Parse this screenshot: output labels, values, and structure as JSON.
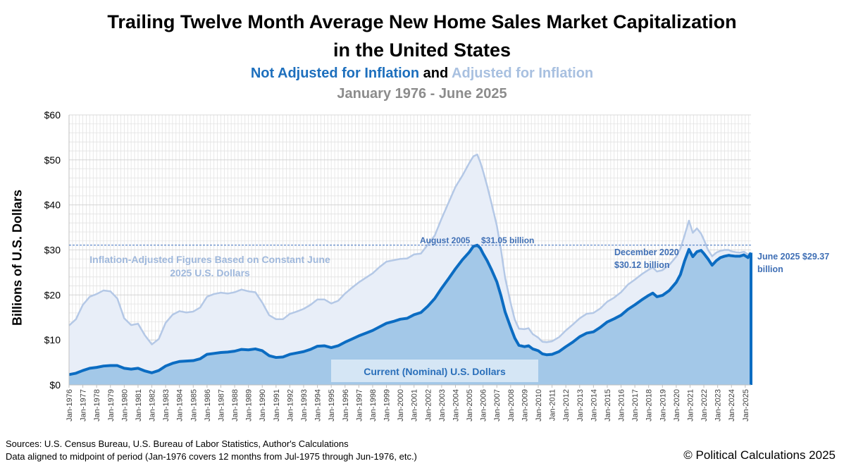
{
  "header": {
    "title_line1": "Trailing Twelve Month Average New Home Sales Market Capitalization",
    "title_line2": "in the United States",
    "subtitle_nominal": "Not Adjusted for Inflation",
    "subtitle_and": "and",
    "subtitle_adjusted": "Adjusted for Inflation",
    "date_range": "January 1976 - June 2025"
  },
  "footer": {
    "source_line1": "Sources: U.S. Census Bureau, U.S. Bureau of Labor Statistics, Author's Calculations",
    "source_line2": "Data aligned to midpoint of period (Jan-1976 covers 12 months from Jul-1975 through Jun-1976, etc.)",
    "copyright": "© Political Calculations 2025"
  },
  "colors": {
    "nominal_line": "#0b6cc2",
    "nominal_fill": "#a3c8e8",
    "adjusted_line": "#b4c8e6",
    "adjusted_fill": "#e8eef8",
    "reference_line": "#3a6fbd"
  },
  "chart_data": {
    "type": "area",
    "ylabel": "Billions of U.S. Dollars",
    "xlabel": "",
    "ylim": [
      0,
      60
    ],
    "yticks": [
      0,
      10,
      20,
      30,
      40,
      50,
      60
    ],
    "ytick_labels": [
      "$0",
      "$10",
      "$20",
      "$30",
      "$40",
      "$50",
      "$60"
    ],
    "xlim": [
      1976.0,
      2025.4167
    ],
    "x_tick_labels": [
      "Jan-1976",
      "Jan-1977",
      "Jan-1978",
      "Jan-1979",
      "Jan-1980",
      "Jan-1981",
      "Jan-1982",
      "Jan-1983",
      "Jan-1984",
      "Jan-1985",
      "Jan-1986",
      "Jan-1987",
      "Jan-1988",
      "Jan-1989",
      "Jan-1990",
      "Jan-1991",
      "Jan-1992",
      "Jan-1993",
      "Jan-1994",
      "Jan-1995",
      "Jan-1996",
      "Jan-1997",
      "Jan-1998",
      "Jan-1999",
      "Jan-2000",
      "Jan-2001",
      "Jan-2002",
      "Jan-2003",
      "Jan-2004",
      "Jan-2005",
      "Jan-2006",
      "Jan-2007",
      "Jan-2008",
      "Jan-2009",
      "Jan-2010",
      "Jan-2011",
      "Jan-2012",
      "Jan-2013",
      "Jan-2014",
      "Jan-2015",
      "Jan-2016",
      "Jan-2017",
      "Jan-2018",
      "Jan-2019",
      "Jan-2020",
      "Jan-2021",
      "Jan-2022",
      "Jan-2023",
      "Jan-2024",
      "Jan-2025"
    ],
    "grid": true,
    "series": [
      {
        "name": "Current (Nominal) U.S. Dollars",
        "x": [
          1976.0,
          1976.5,
          1977.0,
          1977.5,
          1978.0,
          1978.5,
          1979.0,
          1979.5,
          1980.0,
          1980.5,
          1981.0,
          1981.5,
          1982.0,
          1982.5,
          1983.0,
          1983.5,
          1984.0,
          1984.5,
          1985.0,
          1985.5,
          1986.0,
          1986.5,
          1987.0,
          1987.5,
          1988.0,
          1988.5,
          1989.0,
          1989.5,
          1990.0,
          1990.5,
          1991.0,
          1991.5,
          1992.0,
          1992.5,
          1993.0,
          1993.5,
          1994.0,
          1994.5,
          1995.0,
          1995.5,
          1996.0,
          1996.5,
          1997.0,
          1997.5,
          1998.0,
          1998.5,
          1999.0,
          1999.5,
          2000.0,
          2000.5,
          2001.0,
          2001.5,
          2002.0,
          2002.5,
          2003.0,
          2003.5,
          2004.0,
          2004.5,
          2005.0,
          2005.3,
          2005.58,
          2005.8,
          2006.0,
          2006.3,
          2006.6,
          2007.0,
          2007.3,
          2007.6,
          2008.0,
          2008.3,
          2008.6,
          2009.0,
          2009.3,
          2009.6,
          2010.0,
          2010.3,
          2010.6,
          2011.0,
          2011.5,
          2012.0,
          2012.5,
          2013.0,
          2013.5,
          2014.0,
          2014.5,
          2015.0,
          2015.5,
          2016.0,
          2016.5,
          2017.0,
          2017.5,
          2018.0,
          2018.3,
          2018.6,
          2019.0,
          2019.5,
          2020.0,
          2020.3,
          2020.6,
          2020.92,
          2021.2,
          2021.5,
          2021.8,
          2022.0,
          2022.3,
          2022.6,
          2022.9,
          2023.2,
          2023.5,
          2023.8,
          2024.0,
          2024.3,
          2024.6,
          2024.9,
          2025.2,
          2025.4167
        ],
        "values": [
          2.3,
          2.6,
          3.2,
          3.7,
          3.9,
          4.2,
          4.3,
          4.3,
          3.7,
          3.5,
          3.7,
          3.1,
          2.7,
          3.2,
          4.2,
          4.8,
          5.2,
          5.3,
          5.4,
          5.8,
          6.8,
          7.0,
          7.2,
          7.3,
          7.5,
          7.9,
          7.8,
          8.0,
          7.6,
          6.5,
          6.1,
          6.2,
          6.8,
          7.1,
          7.4,
          7.9,
          8.6,
          8.7,
          8.3,
          8.7,
          9.5,
          10.2,
          10.9,
          11.5,
          12.1,
          12.9,
          13.7,
          14.1,
          14.6,
          14.8,
          15.6,
          16.1,
          17.5,
          19.2,
          21.5,
          23.6,
          25.8,
          27.8,
          29.5,
          30.8,
          31.05,
          30.4,
          29.2,
          27.6,
          25.7,
          22.9,
          19.8,
          16.2,
          12.8,
          10.4,
          8.8,
          8.5,
          8.7,
          8.0,
          7.6,
          6.9,
          6.7,
          6.8,
          7.4,
          8.5,
          9.5,
          10.7,
          11.5,
          11.8,
          12.8,
          14.0,
          14.7,
          15.5,
          16.8,
          17.8,
          18.9,
          19.9,
          20.4,
          19.6,
          19.9,
          21.0,
          22.8,
          24.5,
          27.5,
          30.12,
          28.5,
          29.6,
          29.9,
          29.2,
          28.0,
          26.6,
          27.6,
          28.3,
          28.6,
          28.8,
          28.7,
          28.6,
          28.6,
          28.9,
          28.3,
          29.37
        ]
      },
      {
        "name": "Inflation-Adjusted Figures Based on Constant June 2025 U.S. Dollars",
        "x": [
          1976.0,
          1976.5,
          1977.0,
          1977.5,
          1978.0,
          1978.5,
          1979.0,
          1979.5,
          1980.0,
          1980.5,
          1981.0,
          1981.5,
          1982.0,
          1982.5,
          1983.0,
          1983.5,
          1984.0,
          1984.5,
          1985.0,
          1985.5,
          1986.0,
          1986.5,
          1987.0,
          1987.5,
          1988.0,
          1988.5,
          1989.0,
          1989.5,
          1990.0,
          1990.5,
          1991.0,
          1991.5,
          1992.0,
          1992.5,
          1993.0,
          1993.5,
          1994.0,
          1994.5,
          1995.0,
          1995.5,
          1996.0,
          1996.5,
          1997.0,
          1997.5,
          1998.0,
          1998.5,
          1999.0,
          1999.5,
          2000.0,
          2000.5,
          2001.0,
          2001.5,
          2002.0,
          2002.5,
          2003.0,
          2003.5,
          2004.0,
          2004.5,
          2005.0,
          2005.3,
          2005.58,
          2005.8,
          2006.0,
          2006.3,
          2006.6,
          2007.0,
          2007.3,
          2007.6,
          2008.0,
          2008.3,
          2008.6,
          2009.0,
          2009.3,
          2009.6,
          2010.0,
          2010.3,
          2010.6,
          2011.0,
          2011.5,
          2012.0,
          2012.5,
          2013.0,
          2013.5,
          2014.0,
          2014.5,
          2015.0,
          2015.5,
          2016.0,
          2016.5,
          2017.0,
          2017.5,
          2018.0,
          2018.3,
          2018.6,
          2019.0,
          2019.5,
          2020.0,
          2020.3,
          2020.6,
          2020.92,
          2021.2,
          2021.5,
          2021.8,
          2022.0,
          2022.3,
          2022.6,
          2022.9,
          2023.2,
          2023.5,
          2023.8,
          2024.0,
          2024.3,
          2024.6,
          2024.9,
          2025.2,
          2025.4167
        ],
        "values": [
          13.2,
          14.6,
          17.8,
          19.6,
          20.2,
          21.0,
          20.8,
          19.2,
          14.8,
          13.3,
          13.6,
          11.0,
          9.0,
          10.2,
          13.8,
          15.6,
          16.4,
          16.1,
          16.3,
          17.2,
          19.6,
          20.2,
          20.5,
          20.3,
          20.6,
          21.2,
          20.8,
          20.6,
          18.3,
          15.5,
          14.6,
          14.6,
          15.8,
          16.3,
          16.9,
          17.8,
          19.0,
          19.0,
          18.1,
          18.7,
          20.3,
          21.6,
          22.8,
          23.8,
          24.8,
          26.2,
          27.4,
          27.7,
          28.0,
          28.1,
          29.0,
          29.2,
          31.2,
          33.2,
          37.0,
          40.5,
          44.0,
          46.5,
          49.3,
          50.8,
          51.2,
          49.5,
          47.5,
          44.2,
          40.5,
          35.4,
          30.0,
          23.8,
          18.2,
          14.5,
          12.5,
          12.4,
          12.6,
          11.3,
          10.5,
          9.6,
          9.5,
          9.7,
          10.6,
          12.1,
          13.4,
          14.8,
          15.8,
          16.0,
          17.0,
          18.5,
          19.4,
          20.6,
          22.3,
          23.4,
          24.6,
          25.6,
          26.1,
          25.2,
          25.5,
          26.7,
          28.5,
          30.3,
          33.2,
          36.5,
          33.8,
          34.8,
          33.6,
          32.3,
          30.0,
          28.6,
          29.4,
          29.8,
          30.0,
          30.0,
          29.7,
          29.5,
          29.4,
          29.6,
          29.0,
          29.37
        ]
      }
    ],
    "reference_line": {
      "y": 31.05,
      "label_date": "August 2005",
      "label_value": "$31.05 billion"
    },
    "annotations": {
      "inflation_line1": "Inflation-Adjusted Figures Based on Constant June",
      "inflation_line2": "2025 U.S. Dollars",
      "dec2020_line1": "December 2020",
      "dec2020_line2": "$30.12 billion",
      "june2025_line1": "June 2025 $29.37",
      "june2025_line2": "billion",
      "nominal_box": "Current (Nominal) U.S. Dollars"
    }
  }
}
